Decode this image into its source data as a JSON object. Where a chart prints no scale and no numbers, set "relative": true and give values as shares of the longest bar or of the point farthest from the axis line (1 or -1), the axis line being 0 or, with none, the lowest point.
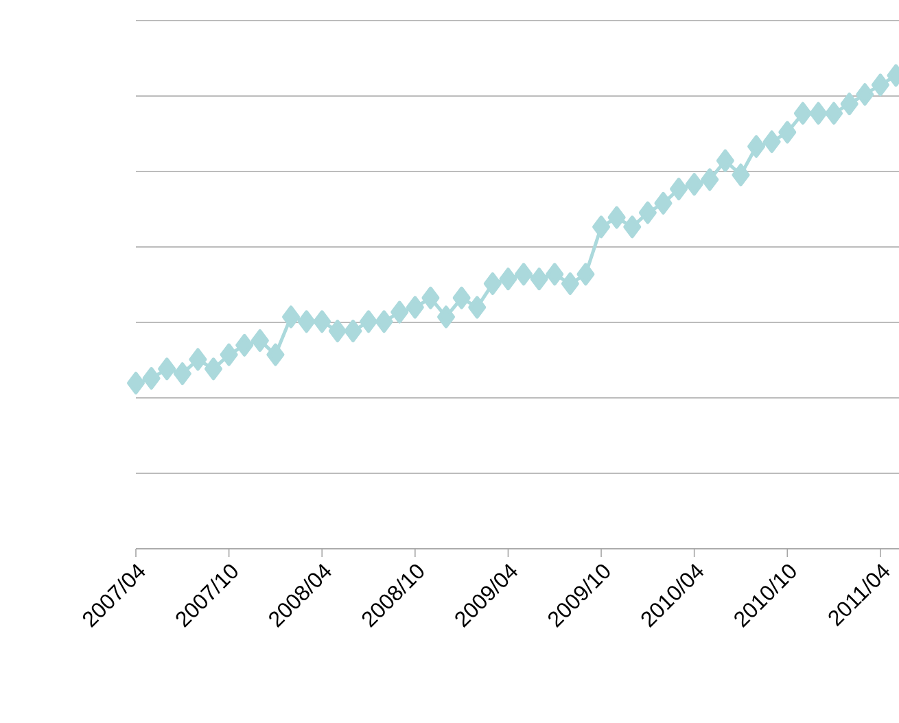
{
  "chart_data": {
    "type": "line",
    "relative": true,
    "categories": [
      "2007/04",
      null,
      null,
      null,
      null,
      null,
      "2007/10",
      null,
      null,
      null,
      null,
      null,
      "2008/04",
      null,
      null,
      null,
      null,
      null,
      "2008/10",
      null,
      null,
      null,
      null,
      null,
      "2009/04",
      null,
      null,
      null,
      null,
      null,
      "2009/10",
      null,
      null,
      null,
      null,
      null,
      "2010/04",
      null,
      null,
      null,
      null,
      null,
      "2010/10",
      null,
      null,
      null,
      null,
      null,
      "2011/04",
      null
    ],
    "series": [
      {
        "color": "#abd9dc",
        "values": [
          0.35,
          0.36,
          0.38,
          0.37,
          0.4,
          0.38,
          0.41,
          0.43,
          0.44,
          0.41,
          0.49,
          0.48,
          0.48,
          0.46,
          0.46,
          0.48,
          0.48,
          0.5,
          0.51,
          0.53,
          0.49,
          0.53,
          0.51,
          0.56,
          0.57,
          0.58,
          0.57,
          0.58,
          0.56,
          0.58,
          0.68,
          0.7,
          0.68,
          0.71,
          0.73,
          0.76,
          0.77,
          0.78,
          0.82,
          0.79,
          0.85,
          0.86,
          0.88,
          0.92,
          0.92,
          0.92,
          0.94,
          0.96,
          0.98,
          1
        ]
      }
    ],
    "grid": "y",
    "tick_labels": "x",
    "marker": "diamond",
    "line_style": "solid"
  }
}
